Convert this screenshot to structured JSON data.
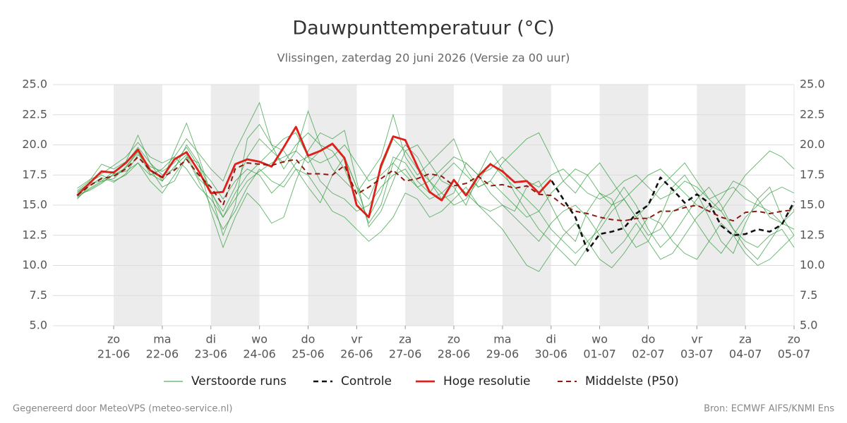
{
  "chart_data": {
    "type": "line",
    "title": "Dauwpunttemperatuur (°C)",
    "subtitle": "Vlissingen, zaterdag 20 juni 2026 (Versie za 00 uur)",
    "footer_left": "Gegenereerd door MeteoVPS (meteo-service.nl)",
    "footer_right": "Bron: ECMWF AIFS/KNMI Ens",
    "xlim": [
      -0.25,
      15
    ],
    "xticks": [
      {
        "value": 1,
        "label": [
          "zo",
          "21-06"
        ]
      },
      {
        "value": 2,
        "label": [
          "ma",
          "22-06"
        ]
      },
      {
        "value": 3,
        "label": [
          "di",
          "23-06"
        ]
      },
      {
        "value": 4,
        "label": [
          "wo",
          "24-06"
        ]
      },
      {
        "value": 5,
        "label": [
          "do",
          "25-06"
        ]
      },
      {
        "value": 6,
        "label": [
          "vr",
          "26-06"
        ]
      },
      {
        "value": 7,
        "label": [
          "za",
          "27-06"
        ]
      },
      {
        "value": 8,
        "label": [
          "zo",
          "28-06"
        ]
      },
      {
        "value": 9,
        "label": [
          "ma",
          "29-06"
        ]
      },
      {
        "value": 10,
        "label": [
          "di",
          "30-06"
        ]
      },
      {
        "value": 11,
        "label": [
          "wo",
          "01-07"
        ]
      },
      {
        "value": 12,
        "label": [
          "do",
          "02-07"
        ]
      },
      {
        "value": 13,
        "label": [
          "vr",
          "03-07"
        ]
      },
      {
        "value": 14,
        "label": [
          "za",
          "04-07"
        ]
      },
      {
        "value": 15,
        "label": [
          "zo",
          "05-07"
        ]
      }
    ],
    "ylim": [
      5,
      25
    ],
    "yticks": [
      {
        "value": 5,
        "label": "5.0"
      },
      {
        "value": 7.5,
        "label": "7.5"
      },
      {
        "value": 10,
        "label": "10.0"
      },
      {
        "value": 12.5,
        "label": "12.5"
      },
      {
        "value": 15,
        "label": "15.0"
      },
      {
        "value": 17.5,
        "label": "17.5"
      },
      {
        "value": 20,
        "label": "20.0"
      },
      {
        "value": 22.5,
        "label": "22.5"
      },
      {
        "value": 25,
        "label": "25.0"
      }
    ],
    "grid": true,
    "x": [
      0.25,
      0.5,
      0.75,
      1,
      1.25,
      1.5,
      1.75,
      2,
      2.25,
      2.5,
      2.75,
      3,
      3.25,
      3.5,
      3.75,
      4,
      4.25,
      4.5,
      4.75,
      5,
      5.25,
      5.5,
      5.75,
      6,
      6.25,
      6.5,
      6.75,
      7,
      7.25,
      7.5,
      7.75,
      8,
      8.25,
      8.5,
      8.75,
      9,
      9.25,
      9.5,
      9.75,
      10,
      10.25,
      10.5,
      10.75,
      11,
      11.25,
      11.5,
      11.75,
      12,
      12.25,
      12.5,
      12.75,
      13,
      13.25,
      13.5,
      13.75,
      14,
      14.25,
      14.5,
      14.75,
      15
    ],
    "series": [
      {
        "name": "Verstoorde runs",
        "color": "#2e9a3a",
        "runs": [
          [
            16.2,
            17.0,
            18.4,
            18.0,
            18.6,
            20.8,
            18.5,
            17.0,
            19.5,
            21.8,
            19.0,
            16.0,
            12.5,
            15.0,
            20.5,
            21.7,
            20.0,
            19.5,
            18.0,
            16.5,
            15.2,
            17.5,
            19.0,
            16.5,
            13.5,
            15.0,
            18.5,
            20.0,
            19.0,
            17.0,
            15.5,
            16.0,
            18.5,
            17.5,
            16.0,
            15.0,
            14.5,
            16.5,
            17.0,
            15.0,
            13.0,
            12.0,
            14.5,
            16.0,
            15.5,
            13.0,
            11.5,
            12.0,
            14.0,
            16.5,
            17.5,
            16.0,
            14.0,
            12.0,
            11.0,
            13.5,
            15.5,
            16.5,
            14.0,
            12.5
          ],
          [
            15.6,
            16.4,
            17.0,
            17.2,
            18.2,
            19.5,
            18.0,
            16.5,
            17.0,
            19.0,
            18.5,
            14.5,
            11.5,
            14.0,
            16.0,
            15.0,
            13.5,
            14.0,
            17.0,
            19.5,
            21.0,
            20.5,
            21.2,
            17.0,
            13.2,
            14.5,
            17.0,
            19.5,
            20.0,
            18.5,
            17.0,
            16.5,
            15.0,
            17.5,
            19.5,
            18.0,
            16.0,
            14.5,
            13.0,
            12.0,
            11.0,
            10.0,
            11.5,
            13.5,
            15.0,
            16.5,
            15.0,
            13.0,
            11.5,
            12.5,
            14.0,
            15.5,
            16.5,
            15.0,
            13.0,
            11.5,
            10.5,
            12.0,
            13.5,
            15.0
          ],
          [
            16.0,
            16.9,
            17.5,
            17.0,
            17.5,
            18.5,
            17.5,
            18.0,
            19.0,
            20.5,
            19.3,
            18.0,
            17.0,
            19.5,
            21.5,
            23.5,
            20.0,
            18.0,
            19.5,
            22.8,
            20.0,
            18.0,
            17.0,
            16.0,
            17.5,
            19.0,
            22.5,
            19.0,
            17.5,
            18.5,
            19.5,
            20.5,
            18.0,
            16.5,
            17.0,
            18.5,
            19.5,
            20.5,
            21.0,
            19.0,
            17.0,
            16.0,
            17.5,
            18.5,
            17.0,
            15.5,
            14.0,
            15.0,
            16.5,
            17.5,
            18.5,
            17.0,
            15.5,
            14.5,
            16.0,
            17.5,
            18.5,
            19.5,
            19.0,
            18.0
          ],
          [
            15.9,
            16.2,
            16.8,
            17.6,
            17.8,
            18.5,
            17.0,
            16.0,
            17.5,
            19.0,
            17.0,
            15.0,
            13.0,
            14.5,
            16.5,
            18.0,
            17.0,
            16.5,
            18.0,
            17.5,
            16.0,
            14.5,
            14.0,
            13.0,
            12.0,
            12.8,
            14.0,
            16.0,
            15.5,
            14.0,
            14.5,
            15.5,
            16.5,
            15.0,
            14.0,
            13.0,
            11.5,
            10.0,
            9.5,
            11.0,
            12.5,
            13.5,
            12.0,
            10.5,
            9.8,
            11.0,
            12.5,
            14.0,
            13.5,
            12.0,
            11.0,
            10.5,
            12.0,
            13.5,
            12.5,
            11.0,
            10.0,
            10.5,
            11.5,
            12.5
          ],
          [
            16.4,
            17.1,
            17.6,
            18.3,
            19.0,
            20.2,
            19.0,
            18.5,
            19.0,
            18.0,
            16.5,
            15.5,
            14.0,
            16.0,
            17.5,
            18.5,
            19.5,
            20.5,
            21.0,
            19.0,
            18.5,
            19.0,
            20.0,
            18.5,
            17.0,
            17.5,
            18.5,
            17.5,
            16.5,
            17.0,
            18.0,
            19.0,
            18.5,
            17.5,
            18.0,
            19.0,
            18.0,
            17.0,
            16.5,
            17.5,
            18.0,
            17.0,
            16.0,
            15.5,
            16.0,
            17.0,
            17.5,
            16.5,
            15.5,
            16.0,
            17.0,
            16.5,
            15.5,
            16.0,
            16.5,
            15.5,
            15.0,
            16.0,
            16.5,
            16.0
          ],
          [
            15.5,
            16.6,
            17.3,
            16.9,
            17.6,
            19.2,
            18.2,
            17.8,
            18.5,
            19.8,
            18.2,
            17.0,
            15.5,
            17.0,
            18.0,
            17.5,
            16.0,
            17.0,
            18.5,
            19.0,
            17.0,
            16.0,
            15.5,
            14.5,
            15.0,
            16.5,
            17.5,
            18.0,
            16.5,
            15.5,
            16.0,
            17.0,
            16.0,
            15.0,
            14.5,
            15.0,
            14.0,
            13.0,
            12.0,
            13.5,
            14.5,
            15.0,
            14.0,
            12.5,
            11.0,
            12.0,
            13.5,
            12.0,
            10.5,
            11.0,
            12.5,
            14.0,
            15.0,
            14.5,
            13.0,
            12.0,
            11.5,
            12.5,
            13.0,
            11.5
          ],
          [
            16.1,
            16.8,
            17.0,
            17.8,
            18.5,
            19.8,
            18.5,
            17.5,
            18.0,
            20.0,
            18.5,
            16.0,
            14.5,
            16.5,
            19.0,
            20.5,
            19.5,
            18.5,
            20.0,
            21.0,
            20.0,
            19.5,
            18.0,
            15.5,
            14.0,
            16.0,
            19.0,
            18.5,
            17.0,
            16.0,
            17.5,
            18.5,
            17.5,
            16.5,
            17.0,
            16.0,
            15.0,
            14.0,
            14.5,
            16.0,
            17.0,
            18.0,
            17.5,
            16.0,
            15.0,
            15.5,
            16.5,
            17.5,
            18.0,
            17.0,
            16.0,
            15.0,
            14.5,
            15.5,
            17.0,
            16.5,
            15.5,
            14.0,
            13.5,
            14.5
          ],
          [
            15.7,
            16.3,
            16.9,
            17.5,
            18.1,
            19.4,
            17.6,
            17.0,
            18.2,
            19.2,
            17.2,
            16.2,
            14.0,
            15.5,
            17.0,
            17.8,
            18.5,
            19.0,
            19.5,
            18.5,
            19.5,
            20.0,
            19.0,
            16.5,
            15.5,
            18.0,
            20.5,
            19.5,
            18.0,
            17.0,
            16.0,
            15.0,
            15.5,
            17.0,
            18.5,
            17.5,
            16.5,
            15.5,
            14.5,
            13.0,
            12.0,
            11.0,
            12.0,
            13.0,
            14.5,
            15.5,
            14.0,
            12.5,
            13.0,
            14.5,
            15.0,
            13.5,
            12.0,
            11.0,
            12.5,
            14.0,
            15.0,
            14.5,
            13.5,
            13.0
          ]
        ]
      },
      {
        "name": "Controle",
        "color": "#111111",
        "dashed": true,
        "width": 2.6,
        "values": [
          15.8,
          16.8,
          17.8,
          17.7,
          18.5,
          19.6,
          17.9,
          17.3,
          18.8,
          19.4,
          17.8,
          16.0,
          16.1,
          18.4,
          18.8,
          18.6,
          18.2,
          19.8,
          21.5,
          19.1,
          19.5,
          20.1,
          18.9,
          15.0,
          14.0,
          18.3,
          20.7,
          20.4,
          18.2,
          16.1,
          15.4,
          17.1,
          15.8,
          17.4,
          18.4,
          17.8,
          16.9,
          17.0,
          16.0,
          17.1,
          15.5,
          14.0,
          11.2,
          12.6,
          12.8,
          13.1,
          14.3,
          15.0,
          17.3,
          16.3,
          15.2,
          15.9,
          15.2,
          13.3,
          12.5,
          12.6,
          13.0,
          12.8,
          13.4,
          15.3
        ]
      },
      {
        "name": "Hoge resolutie",
        "color": "#e0201b",
        "width": 2.8,
        "values": [
          15.8,
          16.8,
          17.8,
          17.7,
          18.5,
          19.6,
          17.9,
          17.3,
          18.8,
          19.4,
          17.8,
          16.0,
          16.1,
          18.4,
          18.8,
          18.6,
          18.2,
          19.8,
          21.5,
          19.1,
          19.5,
          20.1,
          18.9,
          15.0,
          14.0,
          18.3,
          20.7,
          20.4,
          18.2,
          16.1,
          15.4,
          17.1,
          15.8,
          17.4,
          18.4,
          17.8,
          16.9,
          17.0,
          16.0,
          17.1,
          null,
          null,
          null,
          null,
          null,
          null,
          null,
          null,
          null,
          null,
          null,
          null,
          null,
          null,
          null,
          null,
          null,
          null,
          null,
          null
        ]
      },
      {
        "name": "Middelste (P50)",
        "color": "#8b1a0f",
        "dashed": true,
        "width": 2,
        "values": [
          15.8,
          16.6,
          17.2,
          17.4,
          18.0,
          19.0,
          17.9,
          17.3,
          17.9,
          18.8,
          17.5,
          16.5,
          15.0,
          18.0,
          18.5,
          18.4,
          18.3,
          18.6,
          18.8,
          17.6,
          17.6,
          17.5,
          18.3,
          15.9,
          16.5,
          17.2,
          17.9,
          17.0,
          17.2,
          17.6,
          17.4,
          16.6,
          16.8,
          17.4,
          16.6,
          16.7,
          16.4,
          16.6,
          15.9,
          15.8,
          15.0,
          14.5,
          14.3,
          14.0,
          13.8,
          13.7,
          13.9,
          13.9,
          14.5,
          14.5,
          14.8,
          15.0,
          14.5,
          14.0,
          13.7,
          14.4,
          14.5,
          14.3,
          14.5,
          14.6
        ]
      }
    ]
  }
}
